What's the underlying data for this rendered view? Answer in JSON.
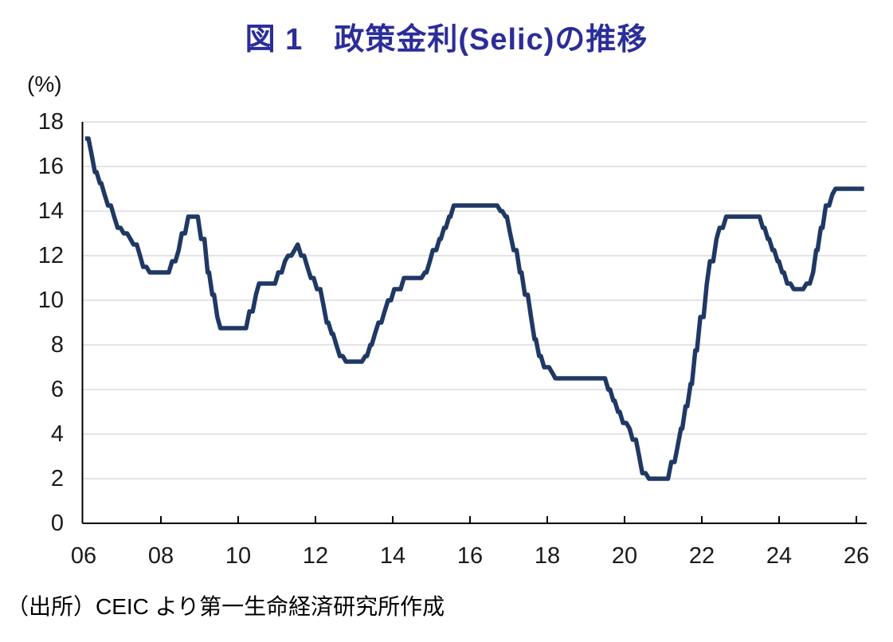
{
  "title": "図 1　政策金利(Selic)の推移",
  "unit_label": "(%)",
  "source": "（出所）CEIC より第一生命経済研究所作成",
  "colors": {
    "title": "#2b2d99",
    "line": "#1f3864",
    "grid": "#dcdcdc",
    "axis": "#000000",
    "tick_label": "#1a1a1a"
  },
  "chart_data": {
    "type": "line",
    "title": "政策金利(Selic)の推移",
    "ylabel": "(%)",
    "xlabel": "",
    "ylim": [
      0,
      18
    ],
    "xlim": [
      2006,
      2026.3
    ],
    "grid": "horizontal",
    "legend": "none",
    "yticks": [
      0,
      2,
      4,
      6,
      8,
      10,
      12,
      14,
      16,
      18
    ],
    "xticks": [
      {
        "year": 2006,
        "label": "06"
      },
      {
        "year": 2008,
        "label": "08"
      },
      {
        "year": 2010,
        "label": "10"
      },
      {
        "year": 2012,
        "label": "12"
      },
      {
        "year": 2014,
        "label": "14"
      },
      {
        "year": 2016,
        "label": "16"
      },
      {
        "year": 2018,
        "label": "18"
      },
      {
        "year": 2020,
        "label": "20"
      },
      {
        "year": 2022,
        "label": "22"
      },
      {
        "year": 2024,
        "label": "24"
      },
      {
        "year": 2026,
        "label": "26"
      }
    ],
    "series": [
      {
        "name": "Selic",
        "unit": "%",
        "points": [
          [
            2006.04,
            17.25
          ],
          [
            2006.21,
            16.5
          ],
          [
            2006.29,
            15.75
          ],
          [
            2006.42,
            15.25
          ],
          [
            2006.54,
            14.75
          ],
          [
            2006.63,
            14.25
          ],
          [
            2006.79,
            13.75
          ],
          [
            2006.88,
            13.25
          ],
          [
            2007.04,
            13.0
          ],
          [
            2007.21,
            12.75
          ],
          [
            2007.29,
            12.5
          ],
          [
            2007.46,
            12.0
          ],
          [
            2007.54,
            11.5
          ],
          [
            2007.71,
            11.25
          ],
          [
            2008.29,
            11.75
          ],
          [
            2008.46,
            12.25
          ],
          [
            2008.54,
            13.0
          ],
          [
            2008.71,
            13.75
          ],
          [
            2009.04,
            12.75
          ],
          [
            2009.21,
            11.25
          ],
          [
            2009.33,
            10.25
          ],
          [
            2009.46,
            9.25
          ],
          [
            2009.54,
            8.75
          ],
          [
            2010.29,
            9.5
          ],
          [
            2010.46,
            10.25
          ],
          [
            2010.54,
            10.75
          ],
          [
            2011.04,
            11.25
          ],
          [
            2011.21,
            11.75
          ],
          [
            2011.29,
            12.0
          ],
          [
            2011.46,
            12.25
          ],
          [
            2011.54,
            12.5
          ],
          [
            2011.63,
            12.0
          ],
          [
            2011.79,
            11.5
          ],
          [
            2011.88,
            11.0
          ],
          [
            2012.04,
            10.5
          ],
          [
            2012.21,
            9.75
          ],
          [
            2012.29,
            9.0
          ],
          [
            2012.42,
            8.5
          ],
          [
            2012.54,
            8.0
          ],
          [
            2012.63,
            7.5
          ],
          [
            2012.79,
            7.25
          ],
          [
            2013.29,
            7.5
          ],
          [
            2013.42,
            8.0
          ],
          [
            2013.54,
            8.5
          ],
          [
            2013.63,
            9.0
          ],
          [
            2013.79,
            9.5
          ],
          [
            2013.88,
            10.0
          ],
          [
            2014.04,
            10.5
          ],
          [
            2014.29,
            11.0
          ],
          [
            2014.83,
            11.25
          ],
          [
            2014.96,
            11.75
          ],
          [
            2015.04,
            12.25
          ],
          [
            2015.21,
            12.75
          ],
          [
            2015.33,
            13.25
          ],
          [
            2015.46,
            13.75
          ],
          [
            2015.58,
            14.25
          ],
          [
            2016.79,
            14.0
          ],
          [
            2016.92,
            13.75
          ],
          [
            2017.04,
            13.0
          ],
          [
            2017.13,
            12.25
          ],
          [
            2017.29,
            11.25
          ],
          [
            2017.42,
            10.25
          ],
          [
            2017.58,
            9.25
          ],
          [
            2017.67,
            8.25
          ],
          [
            2017.79,
            7.5
          ],
          [
            2017.92,
            7.0
          ],
          [
            2018.13,
            6.75
          ],
          [
            2018.21,
            6.5
          ],
          [
            2019.58,
            6.0
          ],
          [
            2019.71,
            5.5
          ],
          [
            2019.83,
            5.0
          ],
          [
            2019.96,
            4.5
          ],
          [
            2020.13,
            4.25
          ],
          [
            2020.21,
            3.75
          ],
          [
            2020.38,
            3.0
          ],
          [
            2020.46,
            2.25
          ],
          [
            2020.63,
            2.0
          ],
          [
            2021.21,
            2.75
          ],
          [
            2021.38,
            3.5
          ],
          [
            2021.46,
            4.25
          ],
          [
            2021.58,
            5.25
          ],
          [
            2021.71,
            6.25
          ],
          [
            2021.83,
            7.75
          ],
          [
            2021.96,
            9.25
          ],
          [
            2022.13,
            10.75
          ],
          [
            2022.21,
            11.75
          ],
          [
            2022.38,
            12.75
          ],
          [
            2022.46,
            13.25
          ],
          [
            2022.63,
            13.75
          ],
          [
            2023.58,
            13.25
          ],
          [
            2023.71,
            12.75
          ],
          [
            2023.83,
            12.25
          ],
          [
            2023.96,
            11.75
          ],
          [
            2024.08,
            11.25
          ],
          [
            2024.21,
            10.75
          ],
          [
            2024.38,
            10.5
          ],
          [
            2024.71,
            10.75
          ],
          [
            2024.88,
            11.25
          ],
          [
            2024.96,
            12.25
          ],
          [
            2025.08,
            13.25
          ],
          [
            2025.21,
            14.25
          ],
          [
            2025.38,
            14.75
          ],
          [
            2025.46,
            15.0
          ],
          [
            2026.2,
            15.0
          ]
        ]
      }
    ]
  }
}
